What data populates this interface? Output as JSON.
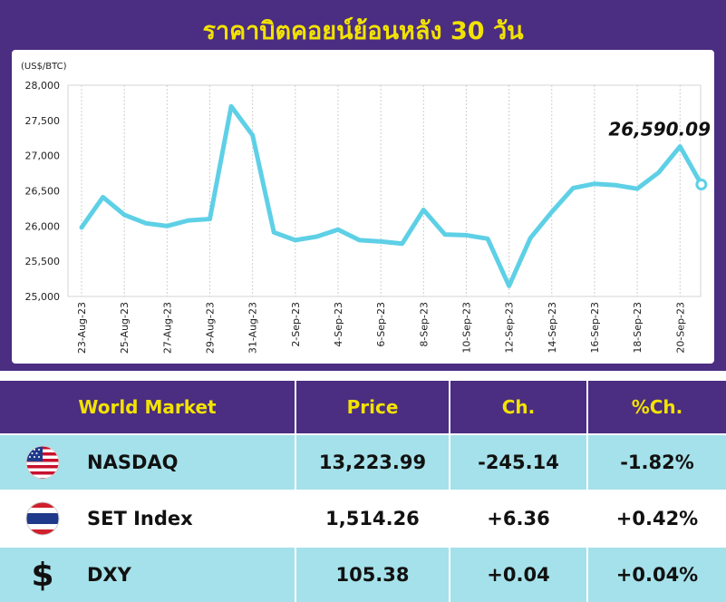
{
  "title": "ราคาบิตคอยน์ย้อนหลัง 30 วัน",
  "chart_data": {
    "type": "line",
    "ylabel": "(US$/BTC)",
    "ylim": [
      25000,
      28000
    ],
    "y_ticks": [
      "25,000",
      "25,500",
      "26,000",
      "26,500",
      "27,000",
      "27,500",
      "28,000"
    ],
    "x_tick_labels": [
      "23-Aug-23",
      "25-Aug-23",
      "27-Aug-23",
      "29-Aug-23",
      "31-Aug-23",
      "2-Sep-23",
      "4-Sep-23",
      "6-Sep-23",
      "8-Sep-23",
      "10-Sep-23",
      "12-Sep-23",
      "14-Sep-23",
      "16-Sep-23",
      "18-Sep-23",
      "20-Sep-23"
    ],
    "grid": true,
    "line_color": "#5ed0e6",
    "values": [
      25980,
      26410,
      26160,
      26040,
      26000,
      26080,
      26100,
      27700,
      27290,
      25910,
      25800,
      25850,
      25950,
      25800,
      25780,
      25750,
      26230,
      25880,
      25870,
      25820,
      25150,
      25830,
      26200,
      26540,
      26600,
      26580,
      26530,
      26760,
      27130,
      26590.09
    ],
    "last_value_label": "26,590.09"
  },
  "table": {
    "headers": [
      "World Market",
      "Price",
      "Ch.",
      "%Ch."
    ],
    "rows": [
      {
        "icon": "us-flag-icon",
        "name": "NASDAQ",
        "price": "13,223.99",
        "change": "-245.14",
        "pct": "-1.82%"
      },
      {
        "icon": "thai-flag-icon",
        "name": "SET Index",
        "price": "1,514.26",
        "change": "+6.36",
        "pct": "+0.42%"
      },
      {
        "icon": "dollar-icon",
        "name": "DXY",
        "price": "105.38",
        "change": "+0.04",
        "pct": "+0.04%"
      }
    ]
  },
  "colors": {
    "background": "#4b2d82",
    "title": "#f2e300",
    "row_alt": "#a5e1ea",
    "line": "#5ed0e6"
  }
}
